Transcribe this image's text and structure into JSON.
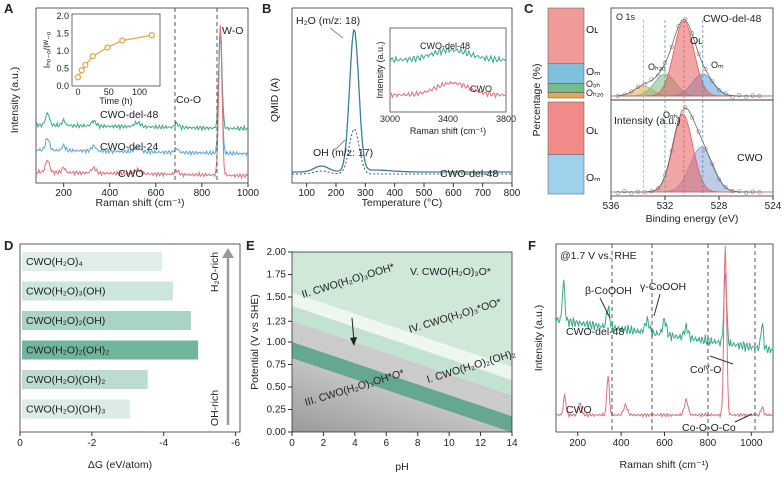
{
  "panels": [
    "A",
    "B",
    "C",
    "D",
    "E",
    "F"
  ],
  "A": {
    "xlabel": "Raman shift (cm⁻¹)",
    "ylabel": "Intensity (a.u.)",
    "xticks": [
      "200",
      "400",
      "600",
      "800",
      "1000"
    ],
    "xlim": [
      80,
      1000
    ],
    "lines": [
      {
        "name": "CWO-del-48",
        "color": "#3aa88a"
      },
      {
        "name": "CWO-del-24",
        "color": "#5aa7d8"
      },
      {
        "name": "CWO",
        "color": "#e0707a"
      }
    ],
    "ann": {
      "coo": "Co-O",
      "wo": "W-O"
    },
    "inset": {
      "ylabel": "Iₕₒ₋ₒ/Iᵂ₋ₒ",
      "xlabel": "Time (h)",
      "xticks": [
        "0",
        "50",
        "100"
      ],
      "yticks": [
        "0.0",
        "0.5",
        "1.0",
        "1.5",
        "2.0"
      ],
      "x": [
        0,
        6,
        12,
        24,
        48,
        72,
        120
      ],
      "y": [
        0.25,
        0.45,
        0.6,
        0.85,
        1.1,
        1.3,
        1.45
      ]
    }
  },
  "B": {
    "xlabel": "Temperature (°C)",
    "ylabel": "QMID (A)",
    "xticks": [
      "100",
      "200",
      "300",
      "400",
      "500",
      "600",
      "700",
      "800"
    ],
    "h2o": "H₂O (m/z: 18)",
    "oh": "OH (m/z: 17)",
    "sample": "CWO-del-48",
    "inset": {
      "xlabel": "Raman shift (cm⁻¹)",
      "ylabel": "Intensity (a.u.)",
      "xticks": [
        "3000",
        "3400",
        "3800"
      ],
      "top": "CWO-del-48",
      "bottom": "CWO"
    }
  },
  "C": {
    "ylabel": "Percentage (%)",
    "xlabel": "Binding energy (eV)",
    "xticks": [
      "536",
      "532",
      "528",
      "524"
    ],
    "o1s": "O 1s",
    "top": "CWO-del-48",
    "bottom": "CWO",
    "bars_top": {
      "OL": 0.62,
      "OM": 0.22,
      "OOH": 0.1,
      "OH2O": 0.06
    },
    "bars_bottom": {
      "OL": 0.57,
      "OM": 0.43
    },
    "labels": {
      "OL": "Oʟ",
      "OM": "Oₘ",
      "OOH": "Oₒₕ",
      "OH2O": "Oₕ₂ₒ"
    }
  },
  "D": {
    "xlabel": "ΔG (eV/atom)",
    "xticks": [
      "0",
      "-2",
      "-4",
      "-6"
    ],
    "top_label": "H₂O-rich",
    "bottom_label": "OH-rich",
    "items": [
      {
        "label": "CWO(H₂O)₄",
        "value": -3.9
      },
      {
        "label": "CWO(H₂O)₃(OH)",
        "value": -4.2
      },
      {
        "label": "CWO(H₂O)₂(OH)",
        "value": -4.7
      },
      {
        "label": "CWO(H₂O)₂(OH)₂",
        "value": -4.9
      },
      {
        "label": "CWO(H₂O)(OH)₂",
        "value": -3.5
      },
      {
        "label": "CWO(H₂O)(OH)₃",
        "value": -3.0
      }
    ]
  },
  "E": {
    "xlabel": "pH",
    "ylabel": "Potential (V vs SHE)",
    "xticks": [
      "0",
      "2",
      "4",
      "6",
      "8",
      "10",
      "12",
      "14"
    ],
    "yticks": [
      "0.00",
      "0.25",
      "0.50",
      "0.75",
      "1.00",
      "1.23",
      "1.50",
      "1.75",
      "2.00"
    ],
    "regions": [
      "V. CWO(H₂O)₃O*",
      "II. CWO(H₂O)₃OOH*",
      "IV. CWO(H₂O)₃*OO*",
      "I. CWO(H₂O)₂(OH)₂",
      "III. CWO(H₂O)₃OH*O*"
    ]
  },
  "F": {
    "xlabel": "Raman shift (cm⁻¹)",
    "ylabel": "Intensity (a.u.)",
    "xticks": [
      "200",
      "400",
      "600",
      "800",
      "1000"
    ],
    "cond": "@1.7 V vs. RHE",
    "top": "CWO-del-48",
    "bottom": "CWO",
    "ann": {
      "b": "β-CoOOH",
      "g": "γ-CoOOH",
      "co4": "Coᴵⱽ-O",
      "cooco": "Co-O-O-Co"
    }
  },
  "chart_data": [
    {
      "type": "line",
      "title": "A",
      "series": [
        {
          "name": "CWO-del-48"
        },
        {
          "name": "CWO-del-24"
        },
        {
          "name": "CWO"
        }
      ],
      "xlim": [
        80,
        1000
      ]
    },
    {
      "type": "line",
      "title": "B",
      "series": [
        {
          "name": "H2O (m/z: 18)"
        },
        {
          "name": "OH (m/z: 17)"
        }
      ],
      "xlim": [
        50,
        800
      ]
    },
    {
      "type": "bar",
      "title": "D",
      "categories": [
        "CWO(H2O)4",
        "CWO(H2O)3(OH)",
        "CWO(H2O)2(OH)",
        "CWO(H2O)2(OH)2",
        "CWO(H2O)(OH)2",
        "CWO(H2O)(OH)3"
      ],
      "values": [
        -3.9,
        -4.2,
        -4.7,
        -4.9,
        -3.5,
        -3.0
      ]
    },
    {
      "type": "area",
      "title": "E",
      "xlim": [
        0,
        14
      ],
      "ylim": [
        0,
        2
      ]
    }
  ]
}
